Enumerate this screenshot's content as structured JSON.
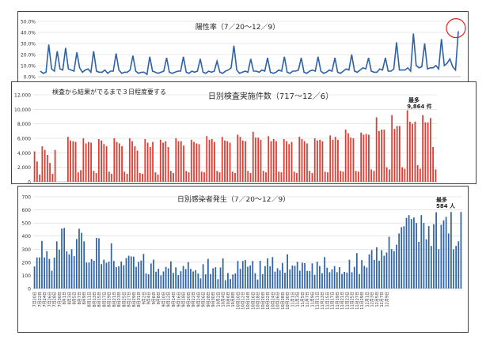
{
  "chart_data": [
    {
      "type": "line",
      "title": "陽性率（7／20～12／9）",
      "xlabel": "",
      "ylabel": "",
      "ylim": [
        0,
        50
      ],
      "y_ticks": [
        "0.0%",
        "10.0%",
        "20.0%",
        "30.0%",
        "40.0%",
        "50.0%"
      ],
      "grid": true,
      "color": "#2e62a6",
      "highlight": {
        "shape": "circle",
        "color": "#dd2222",
        "target": "last point"
      },
      "values": [
        5,
        3,
        4,
        29,
        7,
        5,
        23,
        7,
        6,
        26,
        7,
        6,
        5,
        22,
        8,
        4,
        6,
        7,
        4,
        23,
        5,
        4,
        4,
        6,
        3,
        5,
        5,
        21,
        6,
        3,
        4,
        4,
        6,
        19,
        5,
        3,
        4,
        4,
        2,
        18,
        5,
        4,
        3,
        4,
        5,
        17,
        4,
        3,
        4,
        5,
        5,
        18,
        4,
        3,
        5,
        4,
        5,
        16,
        4,
        3,
        5,
        4,
        5,
        14,
        4,
        3,
        5,
        6,
        8,
        28,
        6,
        3,
        4,
        5,
        4,
        16,
        5,
        5,
        4,
        6,
        5,
        17,
        4,
        3,
        4,
        6,
        5,
        18,
        4,
        3,
        5,
        5,
        6,
        17,
        4,
        3,
        5,
        6,
        5,
        18,
        5,
        3,
        4,
        6,
        5,
        17,
        4,
        3,
        5,
        7,
        6,
        20,
        5,
        4,
        6,
        8,
        7,
        17,
        5,
        4,
        4,
        7,
        6,
        17,
        5,
        5,
        7,
        31,
        6,
        6,
        6,
        8,
        5,
        39,
        10,
        8,
        9,
        30,
        7,
        8,
        8,
        10,
        7,
        34,
        10,
        12,
        16,
        9,
        6,
        41
      ]
    },
    {
      "type": "bar",
      "title": "日別検査実施件数（717～12／6）",
      "note": "検査から結果がでるまで３日程度要する",
      "annotation": {
        "label": "最多",
        "value_label": "9,864 件"
      },
      "xlabel": "",
      "ylabel": "",
      "ylim": [
        0,
        12000
      ],
      "y_ticks": [
        "0",
        "2,000",
        "4,000",
        "6,000",
        "8,000",
        "10,000",
        "12,000"
      ],
      "grid": true,
      "color": "#e03c31",
      "values": [
        4200,
        2800,
        1000,
        4900,
        4400,
        3700,
        2600,
        1100,
        4400,
        0,
        0,
        0,
        0,
        6200,
        5700,
        5600,
        5500,
        1300,
        1600,
        6000,
        5300,
        5500,
        5400,
        1500,
        1200,
        5900,
        5700,
        5200,
        4900,
        1400,
        1100,
        6000,
        5500,
        5300,
        4900,
        1400,
        1100,
        6000,
        5600,
        4900,
        4300,
        1200,
        1100,
        5900,
        5400,
        4800,
        5500,
        1300,
        1000,
        5800,
        5400,
        5600,
        4800,
        1500,
        1200,
        6000,
        5600,
        5600,
        5000,
        1500,
        1300,
        5800,
        5500,
        5300,
        5200,
        1400,
        1300,
        6300,
        5800,
        5900,
        5500,
        1500,
        1300,
        6200,
        5700,
        5600,
        5400,
        1400,
        1200,
        6500,
        6200,
        5700,
        5600,
        1500,
        1200,
        6900,
        6100,
        6100,
        5800,
        1500,
        1300,
        6300,
        5600,
        5900,
        5600,
        1400,
        1300,
        5900,
        5600,
        5200,
        5500,
        1400,
        1200,
        6200,
        5900,
        5600,
        5300,
        1500,
        1200,
        6000,
        5700,
        5800,
        5600,
        1400,
        1300,
        6400,
        5800,
        6200,
        5800,
        1500,
        1400,
        7200,
        6700,
        6100,
        6000,
        1500,
        1400,
        6800,
        6500,
        6600,
        6500,
        1700,
        1500,
        8900,
        7000,
        7200,
        7200,
        2000,
        1700,
        9200,
        7300,
        7700,
        7700,
        2000,
        1800,
        9864,
        8300,
        8000,
        8300,
        2300,
        1800,
        9200,
        8200,
        8200,
        8800,
        4800,
        1700
      ]
    },
    {
      "type": "bar",
      "title": "日別感染者発生（7／20～12／9）",
      "annotation": {
        "label": "最多",
        "value_label": "584 人"
      },
      "xlabel": "",
      "ylabel": "",
      "ylim": [
        0,
        700
      ],
      "y_ticks": [
        "0",
        "100",
        "200",
        "300",
        "400",
        "500",
        "600",
        "700"
      ],
      "grid": true,
      "color": "#2e62a6",
      "x_tick_labels": [
        "7月20日",
        "7月22日",
        "7月24日",
        "7月26日",
        "7月28日",
        "7月30日",
        "8月1日",
        "8月3日",
        "8月5日",
        "8月7日",
        "8月9日",
        "8月11日",
        "8月13日",
        "8月15日",
        "8月17日",
        "8月19日",
        "8月21日",
        "8月23日",
        "8月25日",
        "8月27日",
        "8月29日",
        "8月31日",
        "9月2日",
        "9月4日",
        "9月6日",
        "9月8日",
        "9月10日",
        "9月12日",
        "9月14日",
        "9月16日",
        "9月18日",
        "9月20日",
        "9月22日",
        "9月24日",
        "9月26日",
        "9月28日",
        "9月30日",
        "10月2日",
        "10月4日",
        "10月6日",
        "10月8日",
        "10月10日",
        "10月12日",
        "10月14日",
        "10月16日",
        "10月18日",
        "10月20日",
        "10月22日",
        "10月24日",
        "10月26日",
        "10月28日",
        "10月30日",
        "11月1日",
        "11月3日",
        "11月5日",
        "11月7日",
        "11月9日",
        "11月11日",
        "11月13日",
        "11月15日",
        "11月17日",
        "11月19日",
        "11月21日",
        "11月23日",
        "11月25日",
        "11月27日",
        "11月29日",
        "12月1日",
        "12月3日",
        "12月5日",
        "12月7日",
        "12月9日"
      ],
      "values": [
        168,
        237,
        237,
        363,
        237,
        284,
        226,
        136,
        236,
        360,
        296,
        457,
        462,
        283,
        260,
        299,
        247,
        378,
        456,
        425,
        360,
        198,
        198,
        225,
        212,
        386,
        383,
        186,
        220,
        196,
        205,
        345,
        210,
        163,
        169,
        206,
        178,
        232,
        250,
        245,
        243,
        165,
        204,
        213,
        264,
        114,
        108,
        191,
        220,
        128,
        150,
        100,
        130,
        165,
        154,
        207,
        119,
        161,
        102,
        132,
        172,
        148,
        202,
        150,
        130,
        140,
        114,
        77,
        185,
        108,
        226,
        110,
        154,
        162,
        71,
        160,
        230,
        63,
        118,
        72,
        107,
        115,
        210,
        150,
        210,
        217,
        166,
        176,
        210,
        117,
        68,
        211,
        109,
        171,
        230,
        170,
        240,
        129,
        155,
        139,
        195,
        120,
        260,
        145,
        175,
        173,
        204,
        136,
        197,
        193,
        134,
        133,
        192,
        104,
        205,
        171,
        116,
        240,
        158,
        124,
        146,
        171,
        125,
        163,
        111,
        127,
        121,
        219,
        124,
        165,
        270,
        110,
        216,
        173,
        160,
        260,
        294,
        218,
        315,
        212,
        292,
        250,
        275,
        395,
        300,
        285,
        334,
        420,
        468,
        475,
        539,
        560,
        530,
        542,
        500,
        356,
        560,
        500,
        375,
        476,
        325,
        491,
        582,
        300,
        486,
        520,
        547,
        420,
        584,
        298,
        325,
        360,
        584
      ]
    }
  ]
}
